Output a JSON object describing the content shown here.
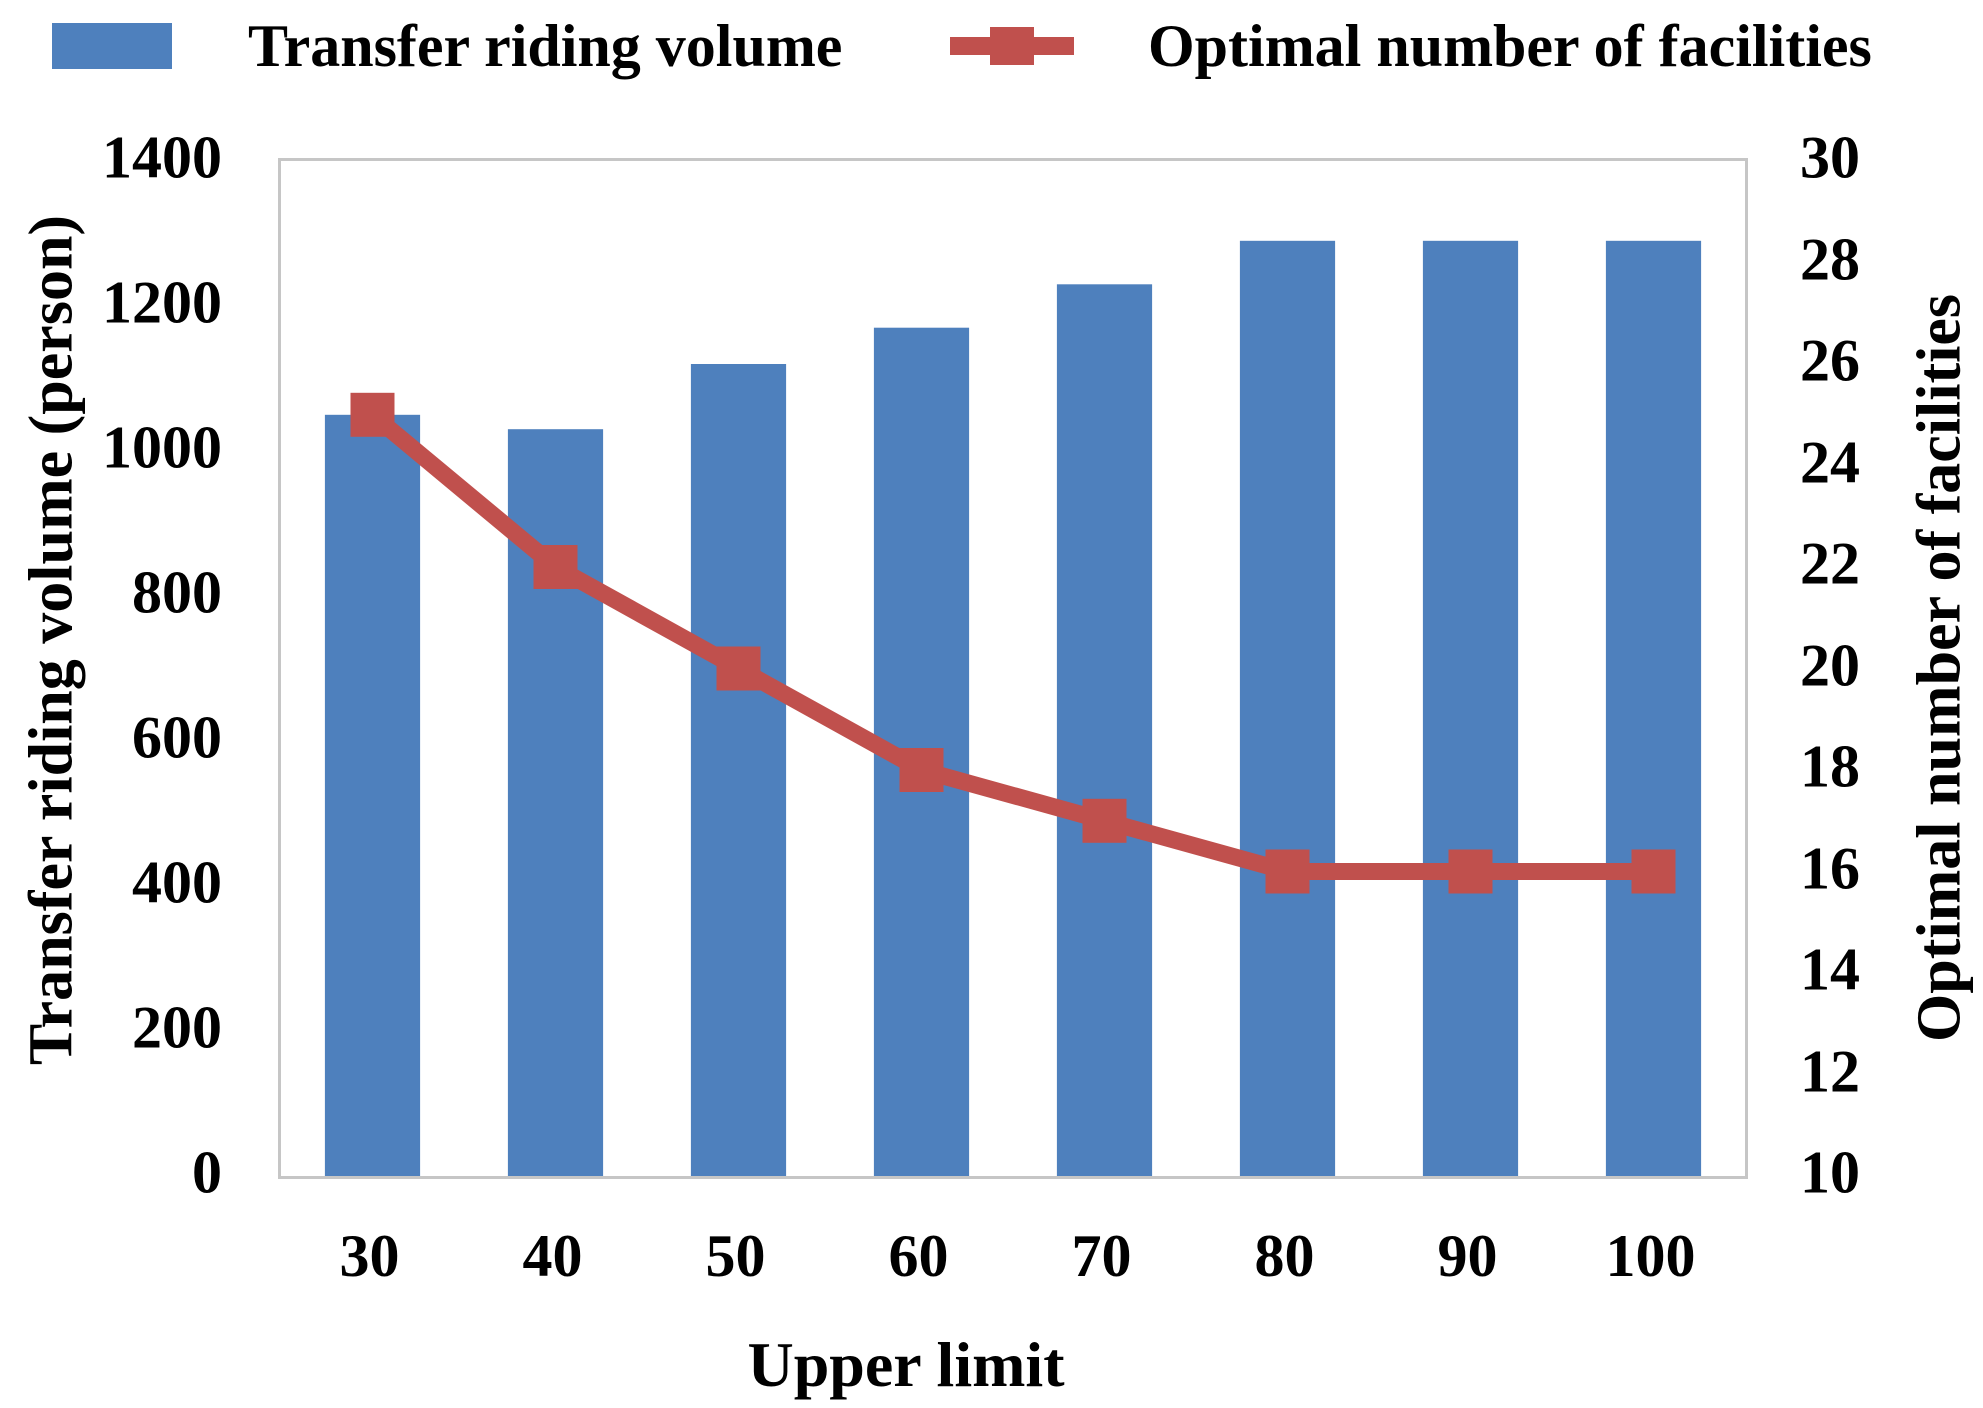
{
  "legend": {
    "bar_label": "Transfer riding volume",
    "line_label": "Optimal number of facilities"
  },
  "chart_data": {
    "type": "bar+line",
    "categories": [
      30,
      40,
      50,
      60,
      70,
      80,
      90,
      100
    ],
    "series": [
      {
        "name": "Transfer riding volume",
        "type": "bar",
        "axis": "left",
        "color": "#4E80BD",
        "values": [
          1050,
          1030,
          1120,
          1170,
          1230,
          1290,
          1290,
          1290
        ]
      },
      {
        "name": "Optimal number of facilities",
        "type": "line",
        "axis": "right",
        "color": "#C0504D",
        "values": [
          25,
          22,
          20,
          18,
          17,
          16,
          16,
          16
        ]
      }
    ],
    "left_axis": {
      "label": "Transfer riding volume (person)",
      "min": 0,
      "max": 1400,
      "step": 200,
      "ticks": [
        1400,
        1200,
        1000,
        800,
        600,
        400,
        200,
        0
      ]
    },
    "right_axis": {
      "label": "Optimal number of facilities",
      "min": 10,
      "max": 30,
      "step": 2,
      "ticks": [
        30,
        28,
        26,
        24,
        22,
        20,
        18,
        16,
        14,
        12,
        10
      ]
    },
    "x_axis": {
      "label": "Upper limit",
      "tick_labels": [
        "30",
        "40",
        "50",
        "60",
        "70",
        "80",
        "90",
        "100"
      ]
    },
    "grid": false,
    "legend_position": "top",
    "plot_border_color": "#c6c6c6",
    "bar_width_fraction": 0.52,
    "line_stroke_width": 17,
    "marker_size": 44
  }
}
